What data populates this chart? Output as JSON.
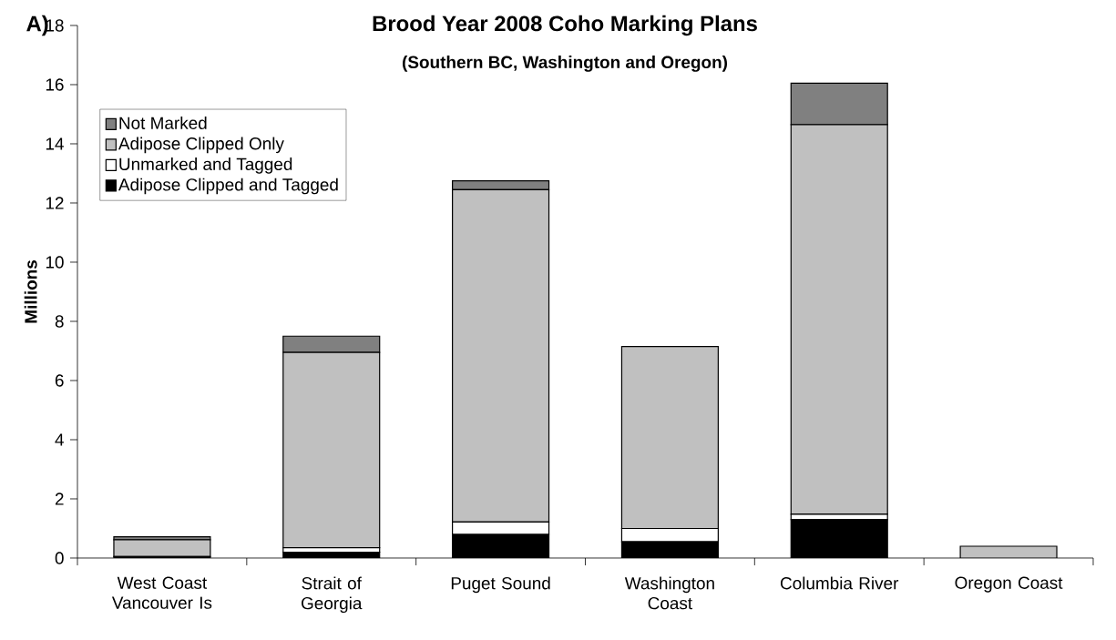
{
  "chart_data": {
    "type": "bar",
    "stacked": true,
    "title": "Brood Year 2008 Coho Marking Plans",
    "subtitle": "(Southern BC, Washington and Oregon)",
    "ylabel": "Millions",
    "annotations": [
      "A)"
    ],
    "categories": [
      "West Coast Vancouver Is",
      "Strait of Georgia",
      "Puget Sound",
      "Washington Coast",
      "Columbia River",
      "Oregon Coast"
    ],
    "series": [
      {
        "name": "Adipose Clipped and Tagged",
        "color": "#000000",
        "values": [
          0.05,
          0.2,
          0.8,
          0.55,
          1.3,
          0
        ]
      },
      {
        "name": "Unmarked and Tagged",
        "color": "#ffffff",
        "values": [
          0,
          0.15,
          0.42,
          0.45,
          0.18,
          0
        ]
      },
      {
        "name": "Adipose Clipped Only",
        "color": "#c0c0c0",
        "values": [
          0.57,
          6.6,
          11.23,
          6.15,
          13.17,
          0.4
        ]
      },
      {
        "name": "Not Marked",
        "color": "#808080",
        "values": [
          0.1,
          0.55,
          0.3,
          0,
          1.4,
          0
        ]
      }
    ],
    "ylim": [
      0,
      18
    ],
    "yticks": [
      0,
      2,
      4,
      6,
      8,
      10,
      12,
      14,
      16,
      18
    ],
    "grid": false,
    "legend": "top left"
  }
}
